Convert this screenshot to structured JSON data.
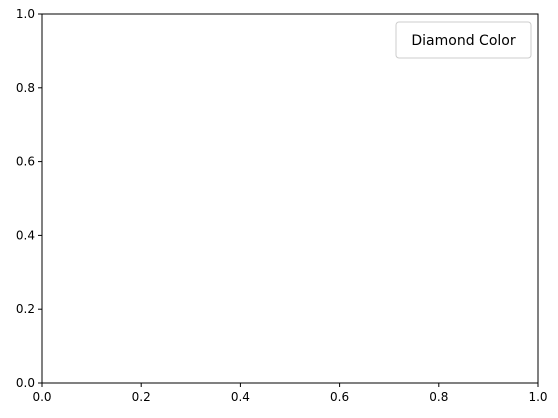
{
  "chart_data": {
    "type": "scatter",
    "title": "",
    "xlabel": "",
    "ylabel": "",
    "xlim": [
      0,
      1
    ],
    "ylim": [
      0,
      1
    ],
    "x_ticks": [
      "0.0",
      "0.2",
      "0.4",
      "0.6",
      "0.8",
      "1.0"
    ],
    "y_ticks": [
      "0.0",
      "0.2",
      "0.4",
      "0.6",
      "0.8",
      "1.0"
    ],
    "series": [],
    "grid": false,
    "legend": {
      "title": "Diamond Color",
      "placement": "top-right",
      "entries": []
    }
  }
}
